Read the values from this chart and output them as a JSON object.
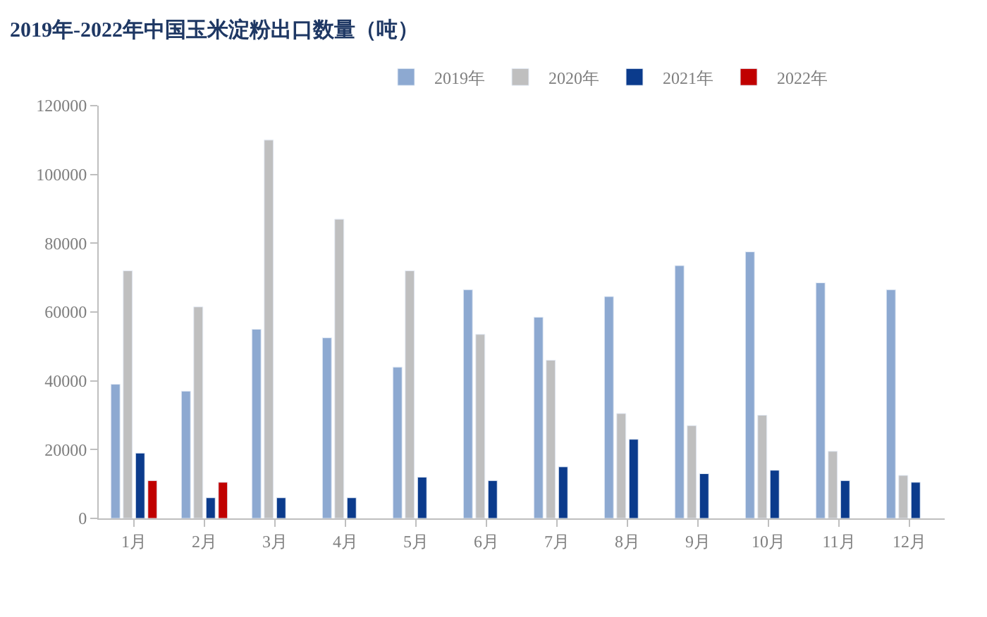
{
  "chart_data": {
    "type": "bar",
    "title": "2019年-2022年中国玉米淀粉出口数量（吨）",
    "categories": [
      "1月",
      "2月",
      "3月",
      "4月",
      "5月",
      "6月",
      "7月",
      "8月",
      "9月",
      "10月",
      "11月",
      "12月"
    ],
    "series": [
      {
        "name": "2019年",
        "color": "#8da9d1",
        "values": [
          39000,
          37000,
          55000,
          52500,
          44000,
          66500,
          58500,
          64500,
          73500,
          77500,
          68500,
          66500
        ]
      },
      {
        "name": "2020年",
        "color": "#bfbfbf",
        "values": [
          72000,
          61500,
          110000,
          87000,
          72000,
          53500,
          46000,
          30500,
          27000,
          30000,
          19500,
          12500
        ]
      },
      {
        "name": "2021年",
        "color": "#0b3b8c",
        "values": [
          19000,
          6000,
          6000,
          6000,
          12000,
          11000,
          15000,
          23000,
          13000,
          14000,
          11000,
          10500
        ]
      },
      {
        "name": "2022年",
        "color": "#c00000",
        "values": [
          11000,
          10500,
          null,
          null,
          null,
          null,
          null,
          null,
          null,
          null,
          null,
          null
        ]
      }
    ],
    "ylim": [
      0,
      120000
    ],
    "yticks": [
      0,
      20000,
      40000,
      60000,
      80000,
      100000,
      120000
    ],
    "legend": "top"
  }
}
